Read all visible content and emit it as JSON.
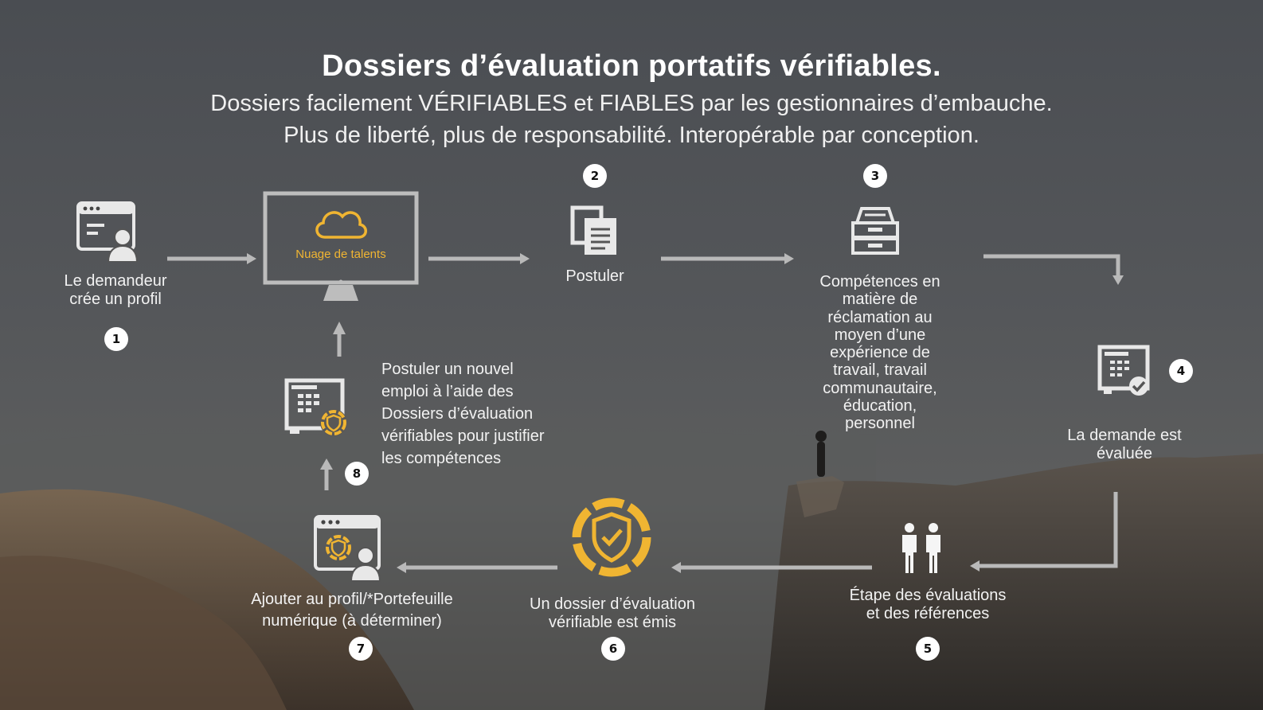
{
  "header": {
    "title": "Dossiers d’évaluation portatifs vérifiables.",
    "subtitle_line1": "Dossiers facilement VÉRIFIABLES et FIABLES par les gestionnaires d’embauche.",
    "subtitle_line2": "Plus de liberté, plus de responsabilité. Interopérable par conception."
  },
  "colors": {
    "accent": "#f0b532",
    "line": "#b9b9b9",
    "text": "#f2f2f2"
  },
  "steps": {
    "s1": {
      "number": "1",
      "label_l1": "Le demandeur",
      "label_l2": "crée un profil",
      "icon": "browser-user-icon"
    },
    "cloud": {
      "label": "Nuage de talents",
      "icon": "monitor-cloud-icon"
    },
    "s2": {
      "number": "2",
      "label": "Postuler",
      "icon": "documents-icon"
    },
    "s3": {
      "number": "3",
      "label_lines": [
        "Compétences en",
        "matière de",
        "réclamation au",
        "moyen d’une",
        "expérience de",
        "travail, travail",
        "communautaire,",
        "éducation,",
        "personnel"
      ],
      "icon": "file-cabinet-icon"
    },
    "s4": {
      "number": "4",
      "label_l1": "La demande est",
      "label_l2": "évaluée",
      "icon": "screen-checkmark-icon"
    },
    "s5": {
      "number": "5",
      "label_l1": "Étape des évaluations",
      "label_l2": "et des références",
      "icon": "two-people-icon"
    },
    "s6": {
      "number": "6",
      "label_l1": "Un dossier d’évaluation",
      "label_l2": "vérifiable est émis",
      "icon": "shield-badge-icon"
    },
    "s7": {
      "number": "7",
      "label_l1": "Ajouter au profil/*Portefeuille",
      "label_l2": "numérique (à déterminer)",
      "icon": "browser-badge-user-icon"
    },
    "s8": {
      "number": "8",
      "label_lines": [
        "Postuler un nouvel",
        "emploi à l’aide des",
        "Dossiers d’évaluation",
        "vérifiables pour justifier",
        "les compétences"
      ],
      "icon": "screen-badge-icon"
    }
  }
}
